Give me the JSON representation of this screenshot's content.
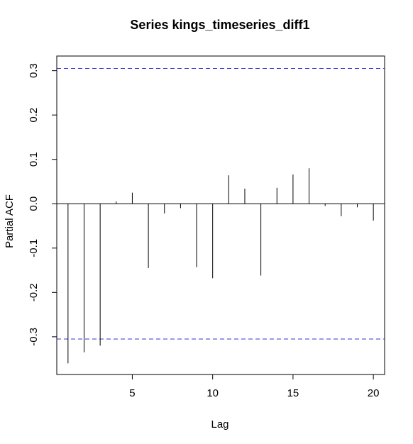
{
  "chart_data": {
    "type": "bar",
    "title": "Series  kings_timeseries_diff1",
    "xlabel": "Lag",
    "ylabel": "Partial ACF",
    "xlim": [
      0.3,
      20.7
    ],
    "ylim": [
      -0.385,
      0.333
    ],
    "x_ticks": [
      5,
      10,
      15,
      20
    ],
    "x_tick_labels": [
      "5",
      "10",
      "15",
      "20"
    ],
    "y_ticks": [
      -0.3,
      -0.2,
      -0.1,
      0.0,
      0.1,
      0.2,
      0.3
    ],
    "y_tick_labels": [
      "-0.3",
      "-0.2",
      "-0.1",
      "0.0",
      "0.1",
      "0.2",
      "0.3"
    ],
    "confidence_bound": 0.305,
    "confidence_line_color": "#3333dd",
    "grid": false,
    "series": [
      {
        "lags": [
          1,
          2,
          3,
          4,
          5,
          6,
          7,
          8,
          9,
          10,
          11,
          12,
          13,
          14,
          15,
          16,
          17,
          18,
          19,
          20
        ],
        "values": [
          -0.36,
          -0.335,
          -0.32,
          0.005,
          0.025,
          -0.145,
          -0.022,
          -0.01,
          -0.143,
          -0.168,
          0.064,
          0.034,
          -0.162,
          0.036,
          0.066,
          0.08,
          -0.005,
          -0.028,
          -0.008,
          -0.038
        ]
      }
    ]
  }
}
